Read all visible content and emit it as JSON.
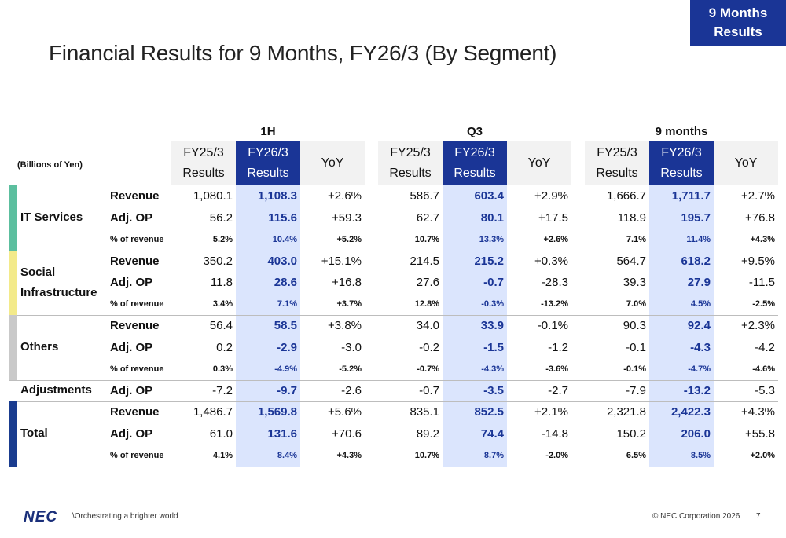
{
  "header": {
    "badge": [
      "9 Months",
      "Results"
    ],
    "title": "Financial Results for 9 Months, FY26/3 (By Segment)"
  },
  "table": {
    "unit": "(Billions of Yen)",
    "groups": [
      "1H",
      "Q3",
      "9 months"
    ],
    "columns": [
      [
        "FY25/3",
        "Results"
      ],
      [
        "FY26/3",
        "Results"
      ],
      [
        "YoY"
      ]
    ],
    "segments": [
      {
        "name": "IT Services",
        "rows": [
          {
            "label": "Revenue",
            "values": [
              "1,080.1",
              "1,108.3",
              "+2.6%",
              "586.7",
              "603.4",
              "+2.9%",
              "1,666.7",
              "1,711.7",
              "+2.7%"
            ]
          },
          {
            "label": "Adj. OP",
            "values": [
              "56.2",
              "115.6",
              "+59.3",
              "62.7",
              "80.1",
              "+17.5",
              "118.9",
              "195.7",
              "+76.8"
            ]
          },
          {
            "label": "% of revenue",
            "values": [
              "5.2%",
              "10.4%",
              "+5.2%",
              "10.7%",
              "13.3%",
              "+2.6%",
              "7.1%",
              "11.4%",
              "+4.3%"
            ]
          }
        ]
      },
      {
        "name": "Social Infrastructure",
        "rows": [
          {
            "label": "Revenue",
            "values": [
              "350.2",
              "403.0",
              "+15.1%",
              "214.5",
              "215.2",
              "+0.3%",
              "564.7",
              "618.2",
              "+9.5%"
            ]
          },
          {
            "label": "Adj. OP",
            "values": [
              "11.8",
              "28.6",
              "+16.8",
              "27.6",
              "-0.7",
              "-28.3",
              "39.3",
              "27.9",
              "-11.5"
            ]
          },
          {
            "label": "% of revenue",
            "values": [
              "3.4%",
              "7.1%",
              "+3.7%",
              "12.8%",
              "-0.3%",
              "-13.2%",
              "7.0%",
              "4.5%",
              "-2.5%"
            ]
          }
        ]
      },
      {
        "name": "Others",
        "rows": [
          {
            "label": "Revenue",
            "values": [
              "56.4",
              "58.5",
              "+3.8%",
              "34.0",
              "33.9",
              "-0.1%",
              "90.3",
              "92.4",
              "+2.3%"
            ]
          },
          {
            "label": "Adj. OP",
            "values": [
              "0.2",
              "-2.9",
              "-3.0",
              "-0.2",
              "-1.5",
              "-1.2",
              "-0.1",
              "-4.3",
              "-4.2"
            ]
          },
          {
            "label": "% of revenue",
            "values": [
              "0.3%",
              "-4.9%",
              "-5.2%",
              "-0.7%",
              "-4.3%",
              "-3.6%",
              "-0.1%",
              "-4.7%",
              "-4.6%"
            ]
          }
        ]
      },
      {
        "name": "Adjustments",
        "rows": [
          {
            "label": "Adj. OP",
            "values": [
              "-7.2",
              "-9.7",
              "-2.6",
              "-0.7",
              "-3.5",
              "-2.7",
              "-7.9",
              "-13.2",
              "-5.3"
            ]
          }
        ]
      },
      {
        "name": "Total",
        "rows": [
          {
            "label": "Revenue",
            "values": [
              "1,486.7",
              "1,569.8",
              "+5.6%",
              "835.1",
              "852.5",
              "+2.1%",
              "2,321.8",
              "2,422.3",
              "+4.3%"
            ]
          },
          {
            "label": "Adj. OP",
            "values": [
              "61.0",
              "131.6",
              "+70.6",
              "89.2",
              "74.4",
              "-14.8",
              "150.2",
              "206.0",
              "+55.8"
            ]
          },
          {
            "label": "% of revenue",
            "values": [
              "4.1%",
              "8.4%",
              "+4.3%",
              "10.7%",
              "8.7%",
              "-2.0%",
              "6.5%",
              "8.5%",
              "+2.0%"
            ]
          }
        ]
      }
    ]
  },
  "footer": {
    "logo": "NEC",
    "tagline": "\\Orchestrating a brighter world",
    "copyright": "© NEC Corporation 2026",
    "page": "7"
  }
}
